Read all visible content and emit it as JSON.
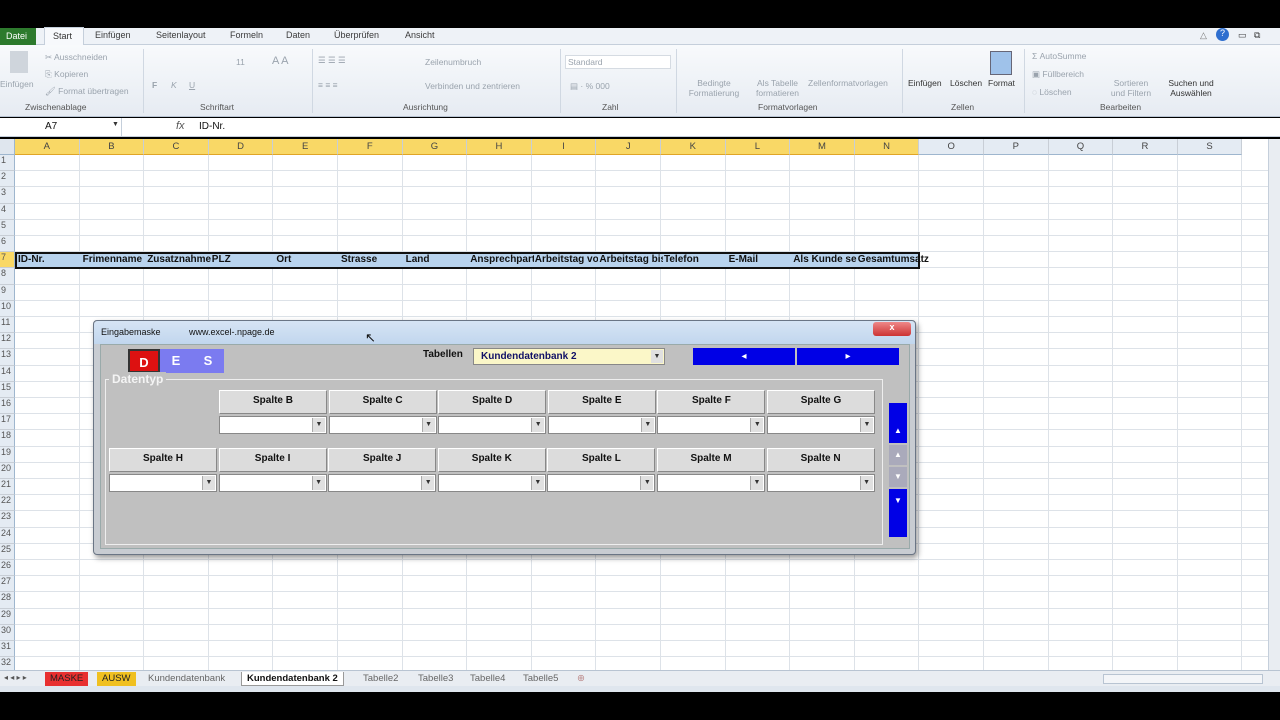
{
  "ribbon_tabs": [
    "Datei",
    "Start",
    "Einfügen",
    "Seitenlayout",
    "Formeln",
    "Daten",
    "Überprüfen",
    "Ansicht"
  ],
  "ribbon": {
    "paste": "Einfügen",
    "cut": "Ausschneiden",
    "copy": "Kopieren",
    "format_painter": "Format übertragen",
    "clipboard_group": "Zwischenablage",
    "font_size": "11",
    "bold": "F",
    "italic": "K",
    "underline": "U",
    "font_group": "Schriftart",
    "wrap": "Zeilenumbruch",
    "merge": "Verbinden und zentrieren",
    "align_group": "Ausrichtung",
    "number_format": "Standard",
    "number_group": "Zahl",
    "cond_format": "Bedingte Formatierung",
    "as_table": "Als Tabelle formatieren",
    "cell_styles": "Zellenformatvorlagen",
    "styles_group": "Formatvorlagen",
    "insert": "Einfügen",
    "delete": "Löschen",
    "format": "Format",
    "cells_group": "Zellen",
    "autosum": "AutoSumme",
    "fill": "Füllbereich",
    "clear": "Löschen",
    "sort": "Sortieren und Filtern",
    "find": "Suchen und Auswählen",
    "edit_group": "Bearbeiten"
  },
  "formula_bar": {
    "name_box": "A7",
    "fx": "fx",
    "value": "ID-Nr."
  },
  "columns": [
    "A",
    "B",
    "C",
    "D",
    "E",
    "F",
    "G",
    "H",
    "I",
    "J",
    "K",
    "L",
    "M",
    "N",
    "O",
    "P",
    "Q",
    "R",
    "S"
  ],
  "selected_columns_through": "N",
  "rows": 32,
  "selected_row": 7,
  "header_row": [
    "ID-Nr.",
    "Frimenname",
    "Zusatznahme",
    "PLZ",
    "Ort",
    "Strasse",
    "Land",
    "Ansprechpartner",
    "Arbeitstag von",
    "Arbeitstag bis",
    "Telefon",
    "E-Mail",
    "Als Kunde seit",
    "Gesamtumsatz"
  ],
  "sheet_tabs": [
    {
      "label": "MASKE",
      "color": "#e83030"
    },
    {
      "label": "AUSW",
      "color": "#f0c020"
    },
    {
      "label": "Kundendatenbank"
    },
    {
      "label": "Kundendatenbank 2",
      "active": true
    },
    {
      "label": "Tabelle2"
    },
    {
      "label": "Tabelle3"
    },
    {
      "label": "Tabelle4"
    },
    {
      "label": "Tabelle5"
    }
  ],
  "dialog": {
    "title": "Eingabemaske",
    "url": "www.excel-.npage.de",
    "close": "x",
    "lang_buttons": [
      {
        "label": "D",
        "color": "#dd1111"
      },
      {
        "label": "E",
        "color": "#7b7bf0"
      },
      {
        "label": "S",
        "color": "#7b7bf0"
      }
    ],
    "tables_label": "Tabellen",
    "tables_value": "Kundendatenbank 2",
    "frame_label": "Datentyp",
    "row1": [
      "Spalte B",
      "Spalte C",
      "Spalte D",
      "Spalte E",
      "Spalte F",
      "Spalte G"
    ],
    "row2": [
      "Spalte H",
      "Spalte I",
      "Spalte J",
      "Spalte K",
      "Spalte L",
      "Spalte M",
      "Spalte N"
    ]
  }
}
